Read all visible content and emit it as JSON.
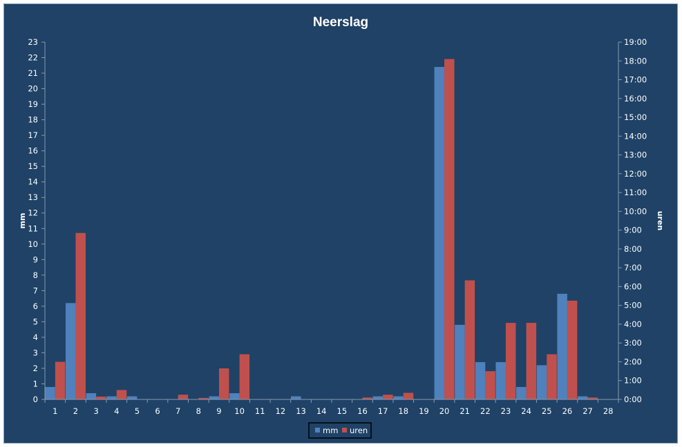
{
  "chart_data": {
    "type": "bar",
    "title": "Neerslag",
    "ylabel_left": "mm",
    "ylabel_right": "uren",
    "ylim_left": [
      0,
      23
    ],
    "ylim_right_hours": [
      0,
      19
    ],
    "left_ticks": [
      "0",
      "1",
      "2",
      "3",
      "4",
      "5",
      "6",
      "7",
      "8",
      "9",
      "10",
      "11",
      "12",
      "13",
      "14",
      "15",
      "16",
      "17",
      "18",
      "19",
      "20",
      "21",
      "22",
      "23"
    ],
    "right_ticks": [
      "0:00",
      "1:00",
      "2:00",
      "3:00",
      "4:00",
      "5:00",
      "6:00",
      "7:00",
      "8:00",
      "9:00",
      "10:00",
      "11:00",
      "12:00",
      "13:00",
      "14:00",
      "15:00",
      "16:00",
      "17:00",
      "18:00",
      "19:00"
    ],
    "categories": [
      "1",
      "2",
      "3",
      "4",
      "5",
      "6",
      "7",
      "8",
      "9",
      "10",
      "11",
      "12",
      "13",
      "14",
      "15",
      "16",
      "17",
      "18",
      "19",
      "20",
      "21",
      "22",
      "23",
      "24",
      "25",
      "26",
      "27",
      "28"
    ],
    "series": [
      {
        "name": "mm",
        "axis": "left",
        "color": "#4f81bd",
        "values": [
          0.8,
          6.2,
          0.4,
          0.2,
          0.2,
          0,
          0,
          0,
          0.2,
          0.4,
          0,
          0,
          0.2,
          0,
          0,
          0,
          0.2,
          0.2,
          0,
          21.4,
          4.8,
          2.4,
          2.4,
          0.8,
          2.2,
          6.8,
          0.2,
          0
        ]
      },
      {
        "name": "uren",
        "axis": "right",
        "unit": "hours",
        "color": "#c0504d",
        "values": [
          2.0,
          8.85,
          0.15,
          0.5,
          0,
          0,
          0.25,
          0.08,
          1.65,
          2.4,
          0,
          0,
          0,
          0,
          0,
          0.1,
          0.25,
          0.35,
          0,
          18.1,
          6.33,
          1.5,
          4.07,
          4.07,
          2.4,
          5.25,
          0.1,
          0
        ]
      }
    ],
    "legend": {
      "position": "bottom"
    },
    "grid": false
  }
}
